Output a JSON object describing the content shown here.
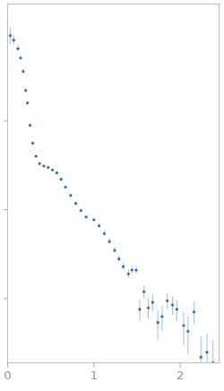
{
  "chart_data": {
    "type": "scatter",
    "x": [
      0.03,
      0.07,
      0.12,
      0.15,
      0.18,
      0.21,
      0.23,
      0.26,
      0.29,
      0.33,
      0.37,
      0.42,
      0.47,
      0.52,
      0.57,
      0.62,
      0.67,
      0.73,
      0.79,
      0.85,
      0.91,
      1.0,
      1.06,
      1.12,
      1.18,
      1.24,
      1.29,
      1.34,
      1.4,
      1.44,
      1.49,
      1.53,
      1.58,
      1.63,
      1.68,
      1.74,
      1.79,
      1.85,
      1.91,
      1.96,
      2.04,
      2.09,
      2.16,
      2.24,
      2.31,
      2.38
    ],
    "values": [
      0.91,
      0.81,
      0.65,
      0.51,
      0.36,
      0.22,
      0.159,
      0.089,
      0.056,
      0.04,
      0.033,
      0.031,
      0.03,
      0.028,
      0.026,
      0.022,
      0.018,
      0.0145,
      0.0118,
      0.0098,
      0.0083,
      0.0077,
      0.0066,
      0.0054,
      0.0044,
      0.0035,
      0.0028,
      0.0023,
      0.0019,
      0.0021,
      0.0021,
      0.00076,
      0.0012,
      0.00079,
      0.00091,
      0.00054,
      0.00063,
      0.00095,
      0.00085,
      0.00076,
      0.0005,
      0.00043,
      0.00071,
      0.00022,
      0.00025,
      0.00019
    ],
    "errors": [
      0.2,
      0.1,
      0.05,
      0.03,
      0.02,
      0.01,
      0.006,
      0.003,
      0.002,
      0.0012,
      0.001,
      0.0008,
      0.0008,
      0.0007,
      0.0007,
      0.0006,
      0.0005,
      0.0004,
      0.0004,
      0.0003,
      0.0003,
      0.0003,
      0.0003,
      0.0003,
      0.0003,
      0.0003,
      0.0002,
      0.0002,
      0.0002,
      0.0002,
      0.0002,
      0.0002,
      0.0002,
      0.0002,
      0.0002,
      0.0002,
      0.0002,
      0.0002,
      0.0002,
      0.0002,
      0.0002,
      0.0002,
      0.0002,
      0.00015,
      0.00015,
      0.00015
    ],
    "color": "#2f6db5",
    "marker": "circle",
    "log": "y",
    "tick_labels": "x",
    "xlim": [
      0,
      2.45
    ],
    "xticks": [
      0,
      1,
      2
    ],
    "ylim": [
      0.00019,
      2.06
    ],
    "yticks": [
      0.1,
      0.01,
      0.001
    ]
  }
}
